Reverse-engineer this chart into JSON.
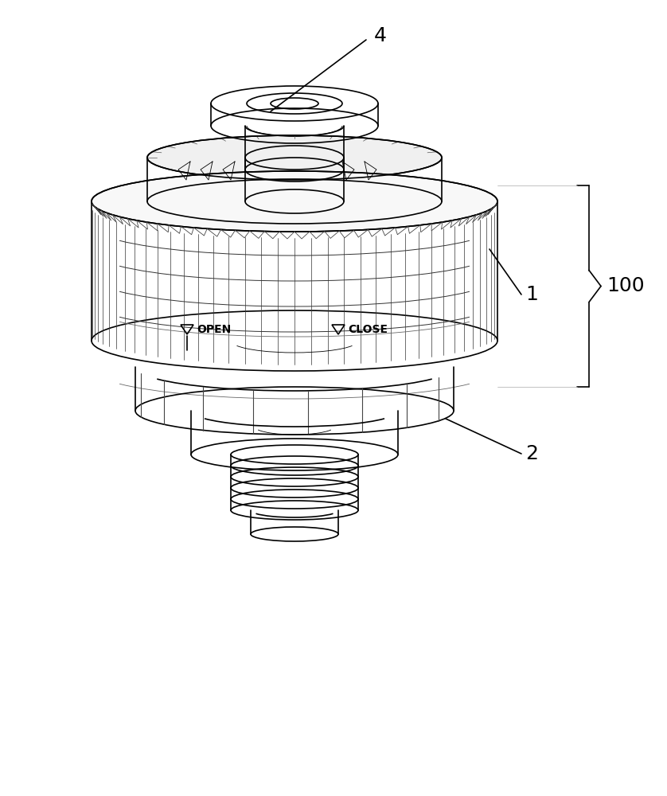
{
  "bg_color": "#ffffff",
  "line_color": "#000000",
  "line_width": 1.2,
  "thin_line": 0.6,
  "label_4": "4",
  "label_1": "1",
  "label_2": "2",
  "label_100": "100",
  "open_text": "OPEN",
  "close_text": "CLOSE",
  "fig_width": 8.38,
  "fig_height": 10.0,
  "font_size_label": 18,
  "font_size_text": 10
}
